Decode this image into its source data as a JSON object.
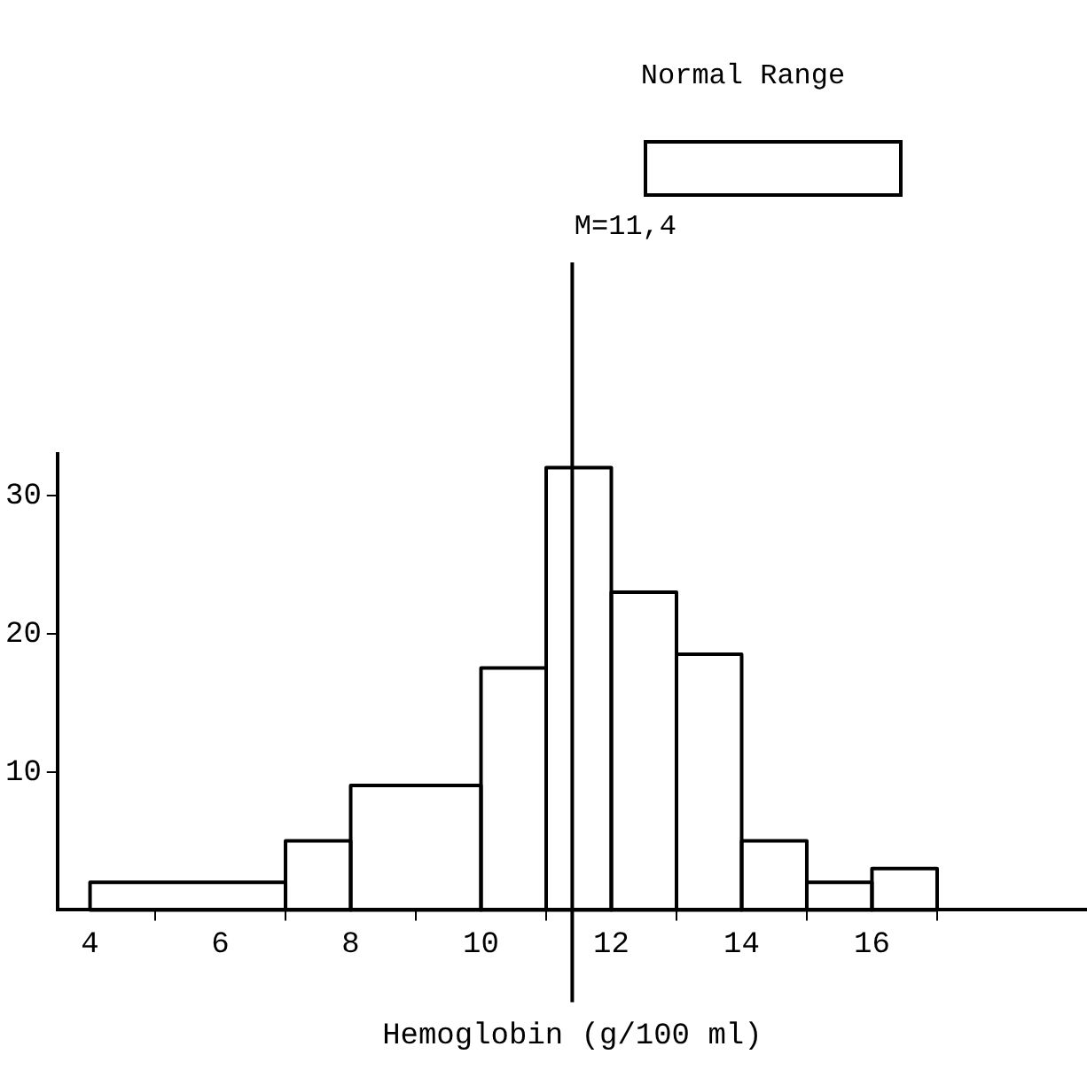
{
  "chart_data": {
    "type": "histogram",
    "xlabel": "Hemoglobin (g/100 ml)",
    "bins": [
      4,
      7,
      8,
      10,
      11,
      12,
      13,
      14,
      15,
      16,
      17
    ],
    "values": [
      2,
      5,
      9,
      17.5,
      32,
      23,
      18.5,
      5,
      2,
      3
    ],
    "color": "#000000",
    "xlim": [
      3.5,
      19.3
    ],
    "xticks": [
      4,
      6,
      8,
      10,
      12,
      14,
      16
    ],
    "ylim": [
      0,
      33
    ],
    "yticks": [
      10,
      20,
      30
    ],
    "ref_lines": [
      {
        "axis": "x",
        "value": 11.4,
        "label": "M=11,4"
      }
    ],
    "annotations": [
      "Normal Range"
    ],
    "grid": false,
    "legend": false
  }
}
